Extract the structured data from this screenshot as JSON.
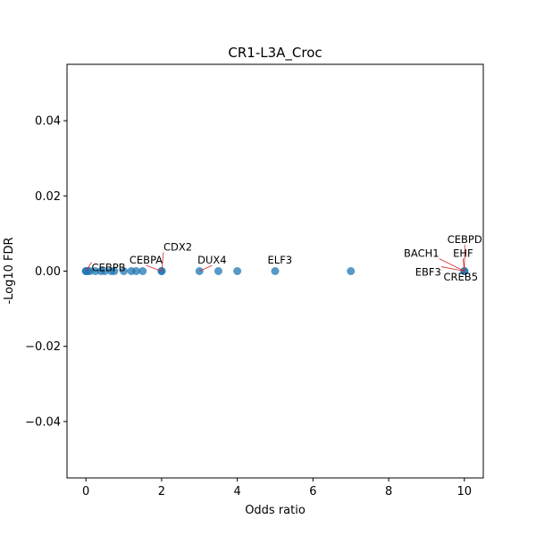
{
  "chart_data": {
    "type": "scatter",
    "title": "CR1-L3A_Croc",
    "xlabel": "Odds ratio",
    "ylabel": "-Log10 FDR",
    "xlim": [
      -0.5,
      10.5
    ],
    "ylim": [
      -0.055,
      0.055
    ],
    "xticks": [
      0,
      2,
      4,
      6,
      8,
      10
    ],
    "yticks": [
      -0.04,
      -0.02,
      0.0,
      0.02,
      0.04
    ],
    "ytick_labels": [
      "−0.04",
      "−0.02",
      "0.00",
      "0.02",
      "0.04"
    ],
    "grid": false,
    "marker_color": "#1f77b4",
    "connector_color": "#d62728",
    "points": [
      {
        "x": 0.0,
        "y": 0
      },
      {
        "x": 0.0,
        "y": 0
      },
      {
        "x": 0.05,
        "y": 0
      },
      {
        "x": 0.1,
        "y": 0
      },
      {
        "x": 0.25,
        "y": 0
      },
      {
        "x": 0.4,
        "y": 0
      },
      {
        "x": 0.5,
        "y": 0
      },
      {
        "x": 0.67,
        "y": 0
      },
      {
        "x": 0.75,
        "y": 0
      },
      {
        "x": 1.0,
        "y": 0
      },
      {
        "x": 1.2,
        "y": 0
      },
      {
        "x": 1.33,
        "y": 0
      },
      {
        "x": 1.5,
        "y": 0
      },
      {
        "x": 2.0,
        "y": 0
      },
      {
        "x": 2.0,
        "y": 0
      },
      {
        "x": 3.0,
        "y": 0
      },
      {
        "x": 3.5,
        "y": 0
      },
      {
        "x": 4.0,
        "y": 0
      },
      {
        "x": 5.0,
        "y": 0
      },
      {
        "x": 7.0,
        "y": 0
      },
      {
        "x": 10.0,
        "y": 0
      },
      {
        "x": 10.0,
        "y": 0
      }
    ],
    "annotations": [
      {
        "text": "CEBPB",
        "x": 0.0,
        "y": 0,
        "tx": 0.15,
        "ty": 0.0
      },
      {
        "text": "CEBPA",
        "x": 2.0,
        "y": 0,
        "tx": 1.15,
        "ty": 0.002
      },
      {
        "text": "CDX2",
        "x": 2.0,
        "y": 0,
        "tx": 2.05,
        "ty": 0.0055
      },
      {
        "text": "DUX4",
        "x": 3.0,
        "y": 0,
        "tx": 2.95,
        "ty": 0.002
      },
      {
        "text": "ELF3",
        "x": 5.0,
        "y": 0,
        "tx": 4.8,
        "ty": 0.002
      },
      {
        "text": "BACH1",
        "x": 10.0,
        "y": 0,
        "tx": 8.4,
        "ty": 0.0038
      },
      {
        "text": "CEBPD",
        "x": 10.0,
        "y": 0,
        "tx": 9.55,
        "ty": 0.0075
      },
      {
        "text": "EHF",
        "x": 10.0,
        "y": 0,
        "tx": 9.7,
        "ty": 0.0038
      },
      {
        "text": "EBF3",
        "x": 10.0,
        "y": 0,
        "tx": 8.7,
        "ty": -0.0012
      },
      {
        "text": "CREB5",
        "x": 10.0,
        "y": 0,
        "tx": 9.45,
        "ty": -0.0025
      }
    ]
  }
}
